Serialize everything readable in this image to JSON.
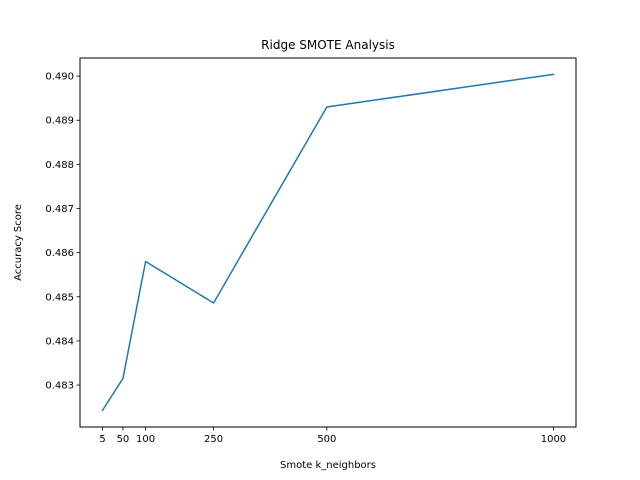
{
  "chart_data": {
    "type": "line",
    "title": "Ridge SMOTE Analysis",
    "xlabel": "Smote k_neighbors",
    "ylabel": "Accuracy Score",
    "x": [
      5,
      50,
      100,
      250,
      500,
      1000
    ],
    "series": [
      {
        "values": [
          0.48243,
          0.48315,
          0.4858,
          0.48486,
          0.4893,
          0.49004
        ]
      }
    ],
    "xticks": [
      5,
      50,
      100,
      250,
      500,
      1000
    ],
    "xtick_labels": [
      "5",
      "50",
      "100",
      "250",
      "500",
      "1000"
    ],
    "yticks": [
      0.483,
      0.484,
      0.485,
      0.486,
      0.487,
      0.488,
      0.489,
      0.49
    ],
    "ytick_labels": [
      "0.483",
      "0.484",
      "0.485",
      "0.486",
      "0.487",
      "0.488",
      "0.489",
      "0.490"
    ],
    "xlim": [
      -44.75,
      1049.75
    ],
    "ylim": [
      0.48205,
      0.49041
    ],
    "grid": false,
    "legend": "none",
    "colors": {
      "line": "#1f77b4",
      "axes": "#000000",
      "background": "#ffffff"
    }
  }
}
